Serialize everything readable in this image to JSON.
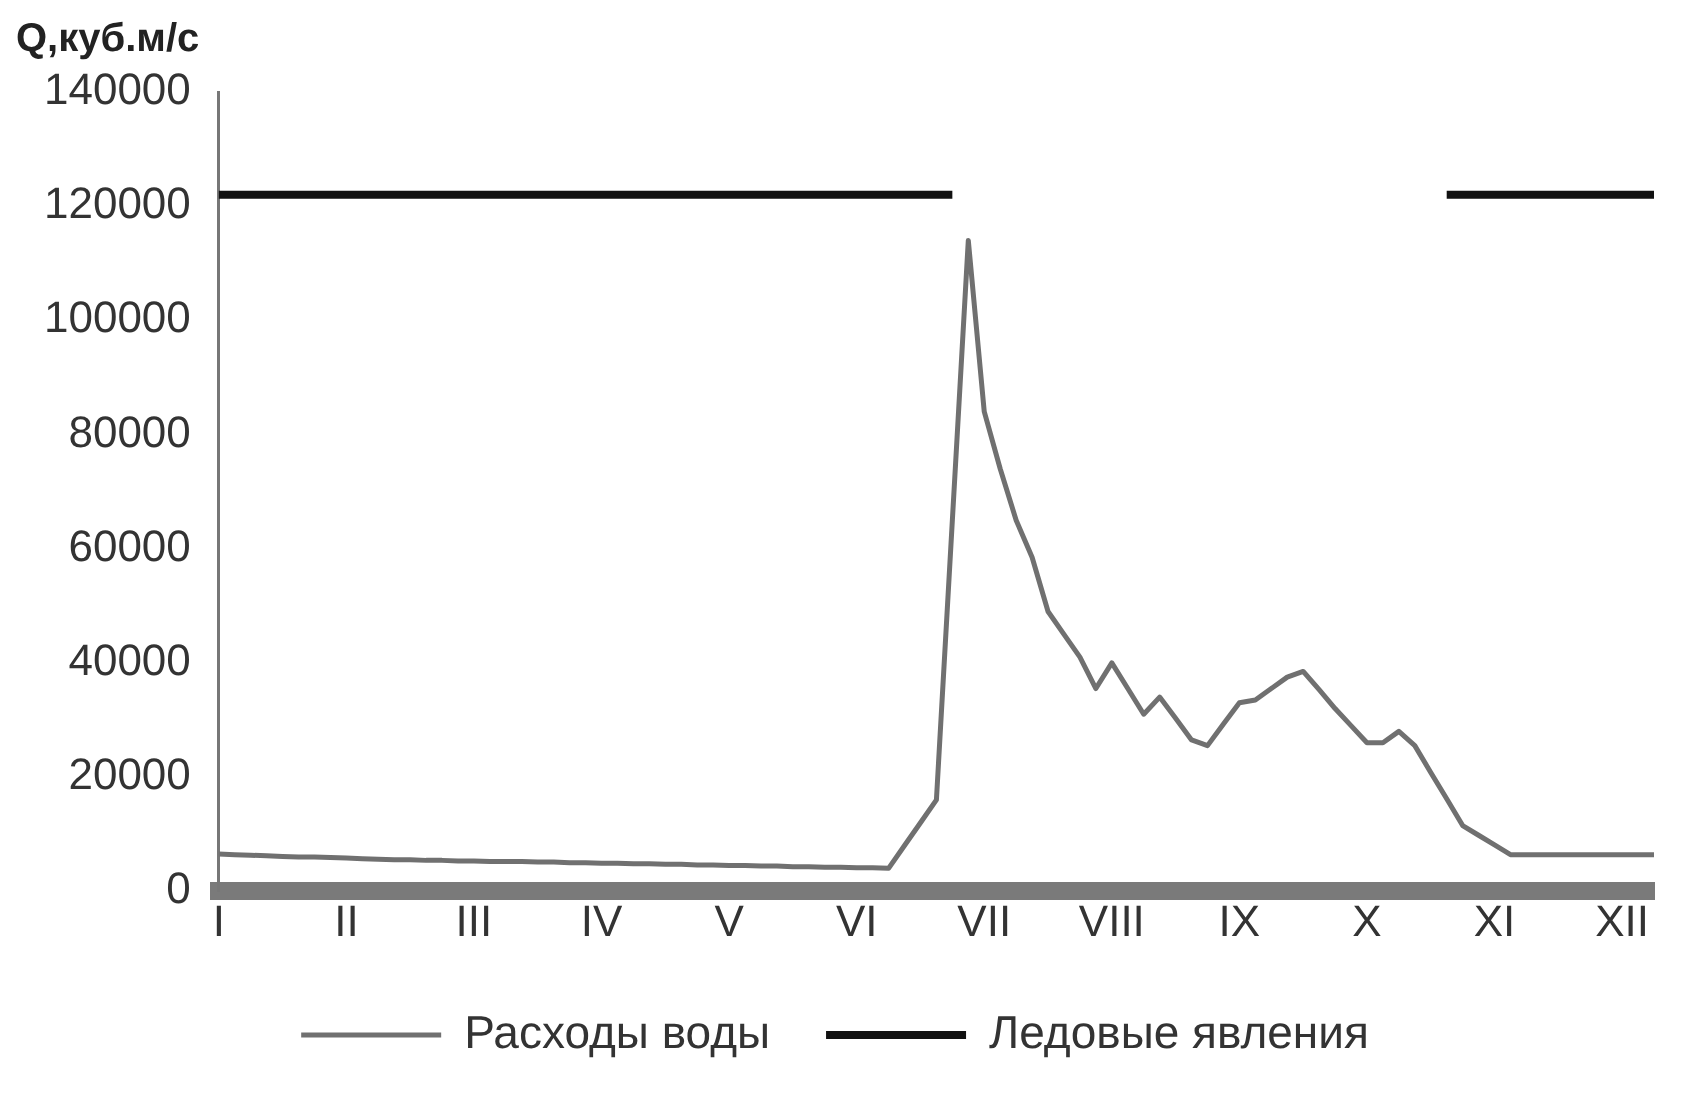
{
  "chart_data": {
    "type": "line",
    "ylabel": "Q,куб.м/с",
    "categories": [
      "I",
      null,
      null,
      null,
      null,
      null,
      null,
      null,
      "II",
      null,
      null,
      null,
      null,
      null,
      null,
      null,
      "III",
      null,
      null,
      null,
      null,
      null,
      null,
      null,
      "IV",
      null,
      null,
      null,
      null,
      null,
      null,
      null,
      "V",
      null,
      null,
      null,
      null,
      null,
      null,
      null,
      "VI",
      null,
      null,
      null,
      null,
      null,
      null,
      null,
      "VII",
      null,
      null,
      null,
      null,
      null,
      null,
      null,
      "VIII",
      null,
      null,
      null,
      null,
      null,
      null,
      null,
      "IX",
      null,
      null,
      null,
      null,
      null,
      null,
      null,
      "X",
      null,
      null,
      null,
      null,
      null,
      null,
      null,
      "XI",
      null,
      null,
      null,
      null,
      null,
      null,
      null,
      "XII",
      null,
      null
    ],
    "ylim": [
      0,
      140000
    ],
    "yticks": [
      0,
      20000,
      40000,
      60000,
      80000,
      100000,
      120000,
      140000
    ],
    "grid": false,
    "legend": "bottom",
    "marker": "none",
    "line_style": "solid",
    "series": [
      {
        "name": "Расходы воды",
        "color": "#707070",
        "values": [
          6500,
          6400,
          6300,
          6200,
          6100,
          6000,
          6000,
          5900,
          5800,
          5700,
          5600,
          5500,
          5500,
          5400,
          5400,
          5300,
          5300,
          5200,
          5200,
          5200,
          5100,
          5100,
          5000,
          5000,
          4900,
          4900,
          4800,
          4800,
          4700,
          4700,
          4600,
          4600,
          4500,
          4500,
          4400,
          4400,
          4300,
          4300,
          4200,
          4200,
          4100,
          4100,
          4000,
          8000,
          12000,
          16000,
          65000,
          114000,
          84000,
          74000,
          65000,
          58500,
          49000,
          45000,
          41000,
          35500,
          40000,
          35500,
          31000,
          34000,
          30300,
          26500,
          25500,
          29300,
          33000,
          33500,
          35500,
          37500,
          38500,
          35300,
          32000,
          29000,
          26000,
          26000,
          28000,
          25500,
          20800,
          16200,
          11500,
          9800,
          8100,
          6400,
          6400,
          6400,
          6400,
          6400,
          6400,
          6400,
          6400,
          6400,
          6400
        ]
      },
      {
        "name": "Ледовые явления",
        "color": "#111111",
        "values": [
          122000,
          122000,
          122000,
          122000,
          122000,
          122000,
          122000,
          122000,
          122000,
          122000,
          122000,
          122000,
          122000,
          122000,
          122000,
          122000,
          122000,
          122000,
          122000,
          122000,
          122000,
          122000,
          122000,
          122000,
          122000,
          122000,
          122000,
          122000,
          122000,
          122000,
          122000,
          122000,
          122000,
          122000,
          122000,
          122000,
          122000,
          122000,
          122000,
          122000,
          122000,
          122000,
          122000,
          122000,
          122000,
          122000,
          122000,
          null,
          null,
          null,
          null,
          null,
          null,
          null,
          null,
          null,
          null,
          null,
          null,
          null,
          null,
          null,
          null,
          null,
          null,
          null,
          null,
          null,
          null,
          null,
          null,
          null,
          null,
          null,
          null,
          null,
          null,
          122000,
          122000,
          122000,
          122000,
          122000,
          122000,
          122000,
          122000,
          122000,
          122000,
          122000,
          122000,
          122000,
          122000
        ]
      }
    ]
  }
}
